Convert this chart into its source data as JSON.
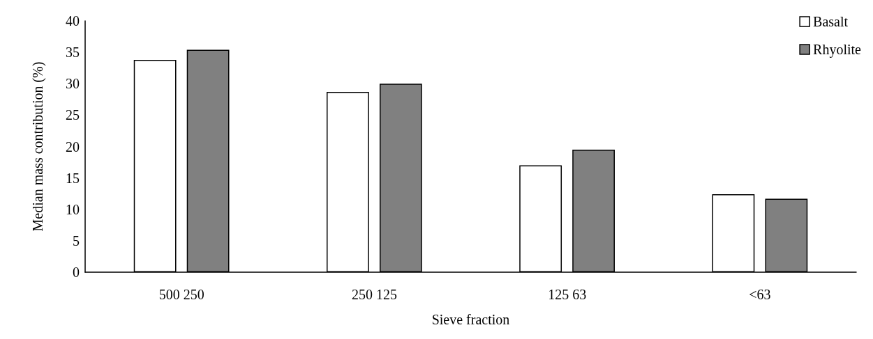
{
  "chart_data": {
    "type": "bar",
    "xlabel": "Sieve fraction",
    "ylabel": "Median mass contribution (%)",
    "categories": [
      "500 250",
      "250 125",
      "125 63",
      "<63"
    ],
    "series": [
      {
        "name": "Basalt",
        "color": "#ffffff",
        "values": [
          33.8,
          28.7,
          17.0,
          12.4
        ]
      },
      {
        "name": "Rhyolite",
        "color": "#808080",
        "values": [
          35.4,
          30.0,
          19.5,
          11.7
        ]
      }
    ],
    "ylim": [
      0,
      40
    ],
    "yticks": [
      0,
      5,
      10,
      15,
      20,
      25,
      30,
      35,
      40
    ],
    "grid": false,
    "legend": "top right"
  }
}
